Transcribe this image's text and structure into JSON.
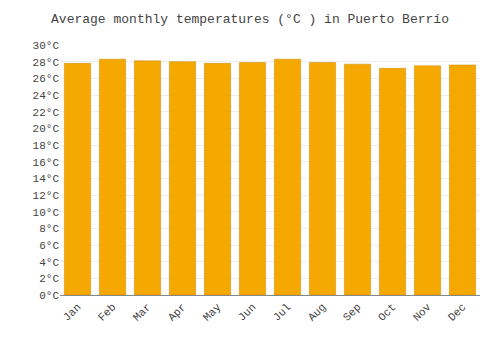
{
  "chart_data": {
    "type": "bar",
    "title": "Average monthly temperatures (°C ) in Puerto Berrío",
    "categories": [
      "Jan",
      "Feb",
      "Mar",
      "Apr",
      "May",
      "Jun",
      "Jul",
      "Aug",
      "Sep",
      "Oct",
      "Nov",
      "Dec"
    ],
    "values": [
      27.8,
      28.3,
      28.1,
      28.0,
      27.8,
      27.9,
      28.3,
      27.9,
      27.7,
      27.2,
      27.5,
      27.6
    ],
    "color": "#F5A800",
    "ylim": [
      0,
      30
    ],
    "yticks": [
      {
        "value": 0,
        "label": "0°C"
      },
      {
        "value": 2,
        "label": "2°C"
      },
      {
        "value": 4,
        "label": "4°C"
      },
      {
        "value": 6,
        "label": "6°C"
      },
      {
        "value": 8,
        "label": "8°C"
      },
      {
        "value": 10,
        "label": "10°C"
      },
      {
        "value": 12,
        "label": "12°C"
      },
      {
        "value": 14,
        "label": "14°C"
      },
      {
        "value": 16,
        "label": "16°C"
      },
      {
        "value": 18,
        "label": "18°C"
      },
      {
        "value": 20,
        "label": "20°C"
      },
      {
        "value": 22,
        "label": "22°C"
      },
      {
        "value": 24,
        "label": "24°C"
      },
      {
        "value": 26,
        "label": "26°C"
      },
      {
        "value": 28,
        "label": "28°C"
      },
      {
        "value": 30,
        "label": "30°C"
      }
    ],
    "grid": true
  }
}
